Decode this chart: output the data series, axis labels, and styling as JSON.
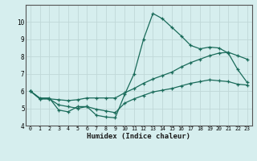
{
  "xlabel": "Humidex (Indice chaleur)",
  "bg_color": "#d6eeee",
  "grid_color": "#c0d8d8",
  "line_color": "#1a6b5a",
  "xlim": [
    -0.5,
    23.5
  ],
  "ylim": [
    4,
    11
  ],
  "xticks": [
    0,
    1,
    2,
    3,
    4,
    5,
    6,
    7,
    8,
    9,
    10,
    11,
    12,
    13,
    14,
    15,
    16,
    17,
    18,
    19,
    20,
    21,
    22,
    23
  ],
  "yticks": [
    4,
    5,
    6,
    7,
    8,
    9,
    10
  ],
  "line1_x": [
    0,
    1,
    2,
    3,
    4,
    5,
    6,
    7,
    8,
    9,
    10,
    11,
    12,
    13,
    14,
    15,
    16,
    17,
    18,
    19,
    20,
    21,
    22,
    23
  ],
  "line1_y": [
    6.0,
    5.6,
    5.6,
    4.9,
    4.8,
    5.1,
    5.1,
    4.6,
    4.5,
    4.45,
    5.8,
    7.0,
    9.0,
    10.5,
    10.2,
    9.7,
    9.2,
    8.65,
    8.45,
    8.55,
    8.5,
    8.2,
    7.25,
    6.5
  ],
  "line2_x": [
    0,
    1,
    2,
    3,
    4,
    5,
    6,
    7,
    8,
    9,
    10,
    11,
    12,
    13,
    14,
    15,
    16,
    17,
    18,
    19,
    20,
    21,
    22,
    23
  ],
  "line2_y": [
    6.0,
    5.55,
    5.55,
    5.5,
    5.45,
    5.5,
    5.6,
    5.6,
    5.6,
    5.6,
    5.9,
    6.15,
    6.45,
    6.7,
    6.9,
    7.1,
    7.4,
    7.65,
    7.85,
    8.05,
    8.2,
    8.25,
    8.05,
    7.85
  ],
  "line3_x": [
    0,
    1,
    2,
    3,
    4,
    5,
    6,
    7,
    8,
    9,
    10,
    11,
    12,
    13,
    14,
    15,
    16,
    17,
    18,
    19,
    20,
    21,
    22,
    23
  ],
  "line3_y": [
    6.0,
    5.55,
    5.55,
    5.2,
    5.1,
    5.0,
    5.1,
    4.95,
    4.85,
    4.75,
    5.3,
    5.55,
    5.75,
    5.95,
    6.05,
    6.15,
    6.3,
    6.45,
    6.55,
    6.65,
    6.6,
    6.55,
    6.4,
    6.35
  ]
}
